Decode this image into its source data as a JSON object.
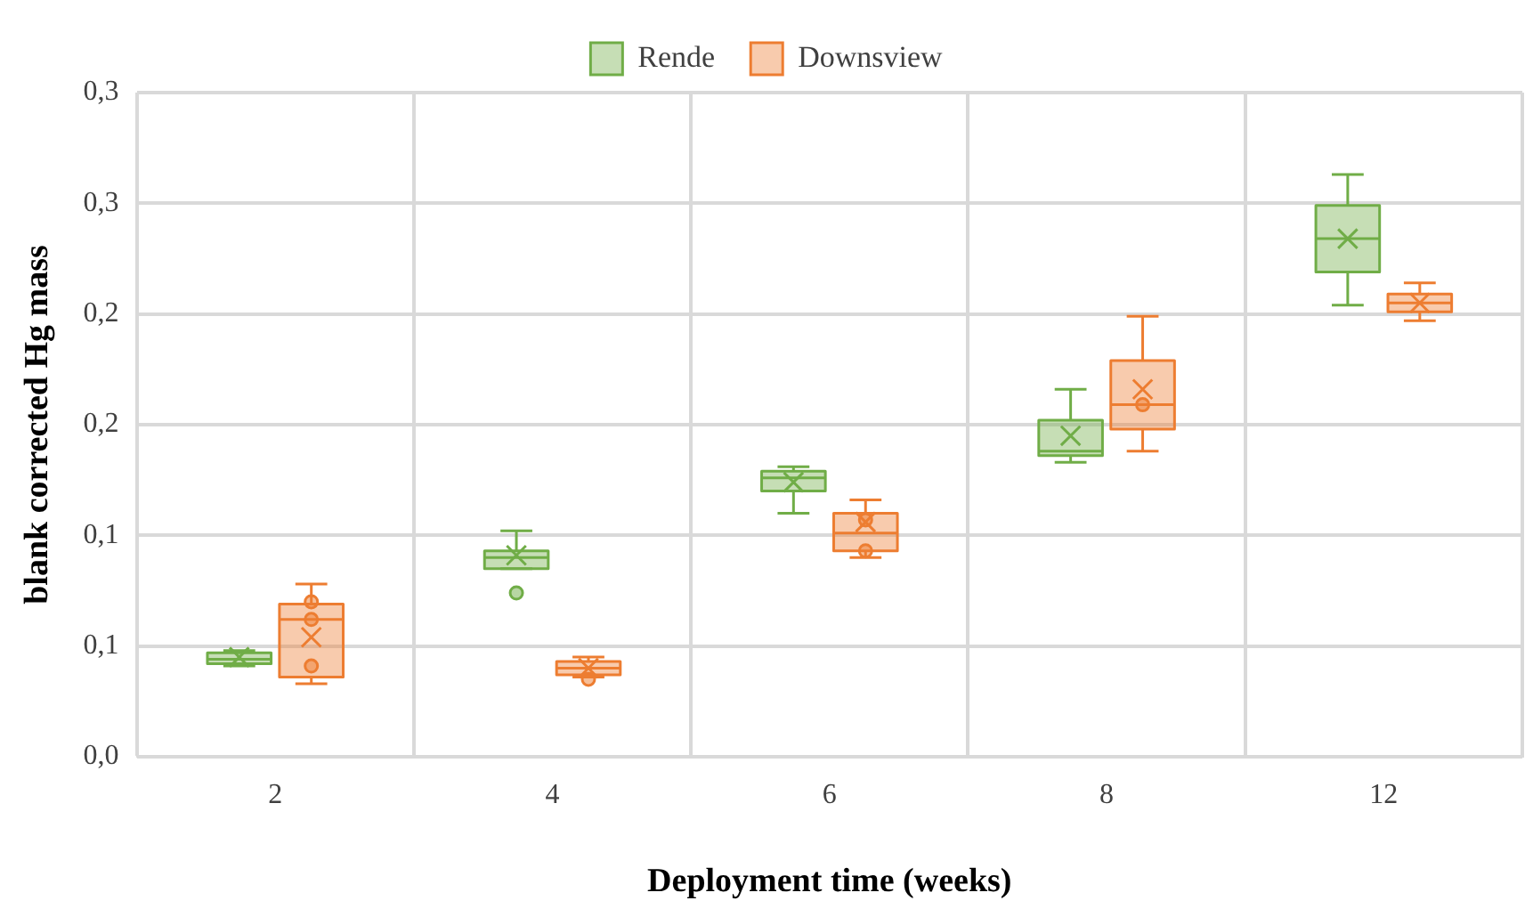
{
  "chart_data": {
    "type": "box",
    "xlabel": "Deployment time (weeks)",
    "ylabel": "blank corrected Hg mass",
    "categories": [
      "2",
      "4",
      "6",
      "8",
      "12"
    ],
    "ylim": [
      0,
      0.3
    ],
    "yticks": [
      {
        "value": 0,
        "label": "0,0"
      },
      {
        "value": 0.05,
        "label": "0,1"
      },
      {
        "value": 0.1,
        "label": "0,1"
      },
      {
        "value": 0.15,
        "label": "0,2"
      },
      {
        "value": 0.2,
        "label": "0,2"
      },
      {
        "value": 0.25,
        "label": "0,3"
      },
      {
        "value": 0.3,
        "label": "0,3"
      }
    ],
    "grid": true,
    "legend": "top",
    "marker": "cross",
    "series": [
      {
        "name": "Rende",
        "color": "#70ad47",
        "boxes": [
          {
            "low": 0.041,
            "q1": 0.042,
            "median": 0.044,
            "q3": 0.047,
            "high": 0.048,
            "mean": 0.045
          },
          {
            "low": 0.085,
            "q1": 0.085,
            "median": 0.09,
            "q3": 0.093,
            "high": 0.102,
            "mean": 0.091,
            "outliers": [
              0.074
            ]
          },
          {
            "low": 0.11,
            "q1": 0.12,
            "median": 0.126,
            "q3": 0.129,
            "high": 0.131,
            "mean": 0.124
          },
          {
            "low": 0.133,
            "q1": 0.136,
            "median": 0.138,
            "q3": 0.152,
            "high": 0.166,
            "mean": 0.145
          },
          {
            "low": 0.204,
            "q1": 0.219,
            "median": 0.234,
            "q3": 0.249,
            "high": 0.263,
            "mean": 0.234
          }
        ]
      },
      {
        "name": "Downsview",
        "color": "#ed7d31",
        "boxes": [
          {
            "low": 0.033,
            "q1": 0.036,
            "median": 0.062,
            "q3": 0.069,
            "high": 0.078,
            "mean": 0.054,
            "outliers": [
              0.07,
              0.062,
              0.041
            ]
          },
          {
            "low": 0.036,
            "q1": 0.037,
            "median": 0.04,
            "q3": 0.043,
            "high": 0.045,
            "mean": 0.04,
            "outliers": [
              0.035
            ]
          },
          {
            "low": 0.09,
            "q1": 0.093,
            "median": 0.101,
            "q3": 0.11,
            "high": 0.116,
            "mean": 0.106,
            "outliers": [
              0.107,
              0.093
            ]
          },
          {
            "low": 0.138,
            "q1": 0.148,
            "median": 0.159,
            "q3": 0.179,
            "high": 0.199,
            "mean": 0.166,
            "outliers": [
              0.159
            ]
          },
          {
            "low": 0.197,
            "q1": 0.201,
            "median": 0.205,
            "q3": 0.209,
            "high": 0.214,
            "mean": 0.205
          }
        ]
      }
    ]
  }
}
